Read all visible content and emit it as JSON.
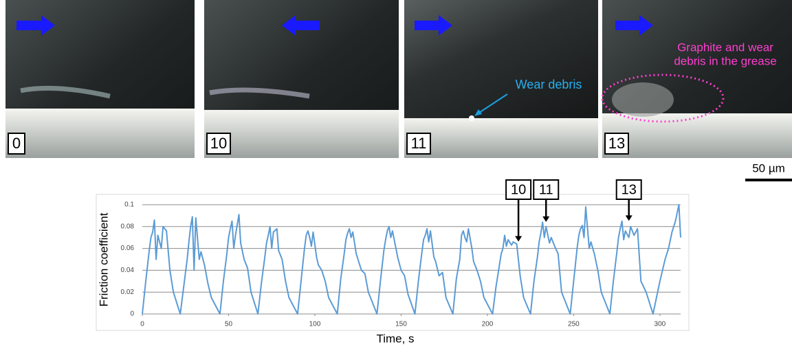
{
  "panels": [
    {
      "label": "0"
    },
    {
      "label": "10"
    },
    {
      "label": "11",
      "annotation": "Wear debris"
    },
    {
      "label": "13",
      "annotation_lines": [
        "Graphite and wear",
        "debris in the grease"
      ]
    }
  ],
  "scale_bar": "50 µm",
  "chart_data": {
    "type": "line",
    "xlabel": "Time, s",
    "ylabel": "Friction coefficient",
    "color": "#5b9bd5",
    "grid": true,
    "xlim": [
      0,
      312
    ],
    "xticks": [
      0,
      50,
      100,
      150,
      200,
      250,
      300
    ],
    "ylim": [
      0,
      0.1
    ],
    "yticks": [
      0,
      0.02,
      0.04,
      0.06,
      0.08,
      0.1
    ],
    "x": [
      0,
      2,
      4,
      5,
      6,
      7,
      8,
      9,
      11,
      12,
      14,
      16,
      18,
      22,
      24,
      26,
      27,
      28,
      29,
      30,
      31,
      33,
      34,
      36,
      38,
      40,
      45,
      47,
      49,
      50,
      51,
      52,
      53,
      54,
      56,
      57,
      59,
      61,
      63,
      67,
      69,
      71,
      72,
      73,
      74,
      75,
      76,
      78,
      79,
      81,
      83,
      85,
      90,
      92,
      94,
      95,
      96,
      97,
      98,
      99,
      101,
      102,
      104,
      106,
      108,
      113,
      115,
      117,
      118,
      119,
      120,
      121,
      122,
      124,
      125,
      127,
      129,
      131,
      136,
      138,
      140,
      141,
      142,
      143,
      144,
      145,
      147,
      148,
      150,
      152,
      154,
      158,
      160,
      162,
      163,
      164,
      165,
      166,
      167,
      169,
      170,
      172,
      174,
      176,
      180,
      182,
      184,
      185,
      186,
      187,
      188,
      189,
      191,
      192,
      194,
      196,
      198,
      203,
      205,
      207,
      208,
      209,
      210,
      211,
      212,
      214,
      215,
      217,
      219,
      221,
      225,
      227,
      229,
      230,
      231,
      232,
      233,
      234,
      236,
      237,
      239,
      241,
      243,
      248,
      250,
      252,
      253,
      254,
      255,
      256,
      257,
      259,
      260,
      262,
      264,
      266,
      271,
      273,
      275,
      276,
      277,
      278,
      279,
      280,
      282,
      283,
      285,
      287,
      289,
      292,
      296,
      300,
      303,
      305,
      307,
      309,
      311,
      312
    ],
    "values": [
      0,
      0.03,
      0.058,
      0.07,
      0.075,
      0.086,
      0.05,
      0.072,
      0.06,
      0.08,
      0.076,
      0.04,
      0.02,
      0,
      0.025,
      0.05,
      0.066,
      0.08,
      0.089,
      0.04,
      0.088,
      0.05,
      0.057,
      0.045,
      0.028,
      0.015,
      0,
      0.03,
      0.055,
      0.07,
      0.078,
      0.085,
      0.06,
      0.072,
      0.091,
      0.065,
      0.05,
      0.042,
      0.02,
      0,
      0.028,
      0.052,
      0.065,
      0.072,
      0.08,
      0.06,
      0.075,
      0.078,
      0.058,
      0.05,
      0.03,
      0.015,
      0,
      0.03,
      0.06,
      0.072,
      0.076,
      0.07,
      0.062,
      0.075,
      0.052,
      0.045,
      0.04,
      0.03,
      0.015,
      0,
      0.032,
      0.055,
      0.068,
      0.074,
      0.078,
      0.07,
      0.075,
      0.055,
      0.05,
      0.04,
      0.037,
      0.02,
      0,
      0.03,
      0.058,
      0.068,
      0.076,
      0.08,
      0.07,
      0.076,
      0.06,
      0.052,
      0.04,
      0.035,
      0.018,
      0,
      0.03,
      0.056,
      0.068,
      0.072,
      0.078,
      0.066,
      0.076,
      0.052,
      0.048,
      0.035,
      0.038,
      0.015,
      0,
      0.032,
      0.05,
      0.072,
      0.076,
      0.07,
      0.066,
      0.078,
      0.06,
      0.048,
      0.04,
      0.03,
      0.015,
      0,
      0.025,
      0.045,
      0.055,
      0.06,
      0.072,
      0.062,
      0.068,
      0.063,
      0.066,
      0.064,
      0.035,
      0.015,
      0,
      0.03,
      0.052,
      0.066,
      0.074,
      0.084,
      0.07,
      0.08,
      0.065,
      0.07,
      0.062,
      0.055,
      0.02,
      0,
      0.03,
      0.06,
      0.072,
      0.078,
      0.081,
      0.07,
      0.098,
      0.06,
      0.066,
      0.055,
      0.04,
      0.02,
      0,
      0.03,
      0.056,
      0.07,
      0.078,
      0.085,
      0.068,
      0.076,
      0.07,
      0.08,
      0.072,
      0.078,
      0.03,
      0.02,
      0,
      0.03,
      0.05,
      0.06,
      0.075,
      0.085,
      0.1,
      0.07
    ],
    "annotations": [
      {
        "text": "10",
        "x": 218,
        "y": 0.065
      },
      {
        "text": "11",
        "x": 234,
        "y": 0.083
      },
      {
        "text": "13",
        "x": 282,
        "y": 0.084
      }
    ]
  }
}
